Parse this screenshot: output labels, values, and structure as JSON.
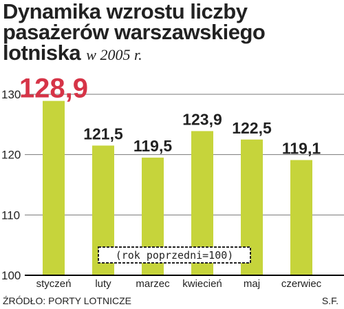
{
  "title_main": "Dynamika wzrostu liczby pasażerów warszawskiego lotniska",
  "title_sub": "w 2005 r.",
  "note": "(rok poprzedni=100)",
  "source": "ŹRÓDŁO: PORTY LOTNICZE",
  "author": "S.F.",
  "colors": {
    "bar": "#c6d43b",
    "highlight_label": "#d63447",
    "text": "#222222",
    "grid": "#777777"
  },
  "chart_data": {
    "type": "bar",
    "title": "Dynamika wzrostu liczby pasażerów warszawskiego lotniska w 2005 r.",
    "categories": [
      "styczeń",
      "luty",
      "marzec",
      "kwiecień",
      "maj",
      "czerwiec"
    ],
    "values": [
      128.9,
      121.5,
      119.5,
      123.9,
      122.5,
      119.1
    ],
    "value_labels": [
      "128,9",
      "121,5",
      "119,5",
      "123,9",
      "122,5",
      "119,1"
    ],
    "y_ticks": [
      "100",
      "110",
      "120",
      "130"
    ],
    "ylim": [
      100,
      130
    ],
    "grid": true,
    "highlight_index": 0
  }
}
